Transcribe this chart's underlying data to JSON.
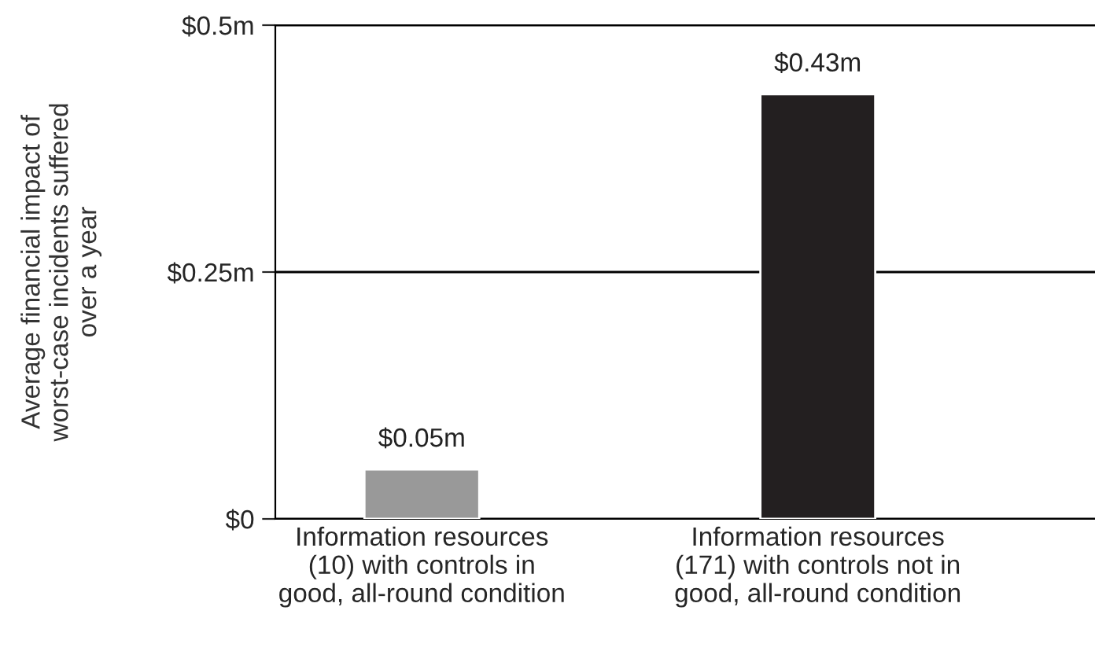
{
  "chart_data": {
    "type": "bar",
    "ylabel": "Average financial impact of\nworst-case incidents suffered\nover a year",
    "categories": [
      "Information resources\n(10) with controls in\ngood, all-round condition",
      "Information resources\n(171) with controls not in\ngood, all-round condition"
    ],
    "values": [
      0.05,
      0.43
    ],
    "colors": [
      "#999999",
      "#231f20"
    ],
    "value_labels": [
      "$0.05m",
      "$0.43m"
    ],
    "ylim": [
      0,
      0.5
    ],
    "yticks": [
      {
        "value": 0,
        "label": "$0"
      },
      {
        "value": 0.25,
        "label": "$0.25m"
      },
      {
        "value": 0.5,
        "label": "$0.5m"
      }
    ],
    "grid": "y"
  }
}
